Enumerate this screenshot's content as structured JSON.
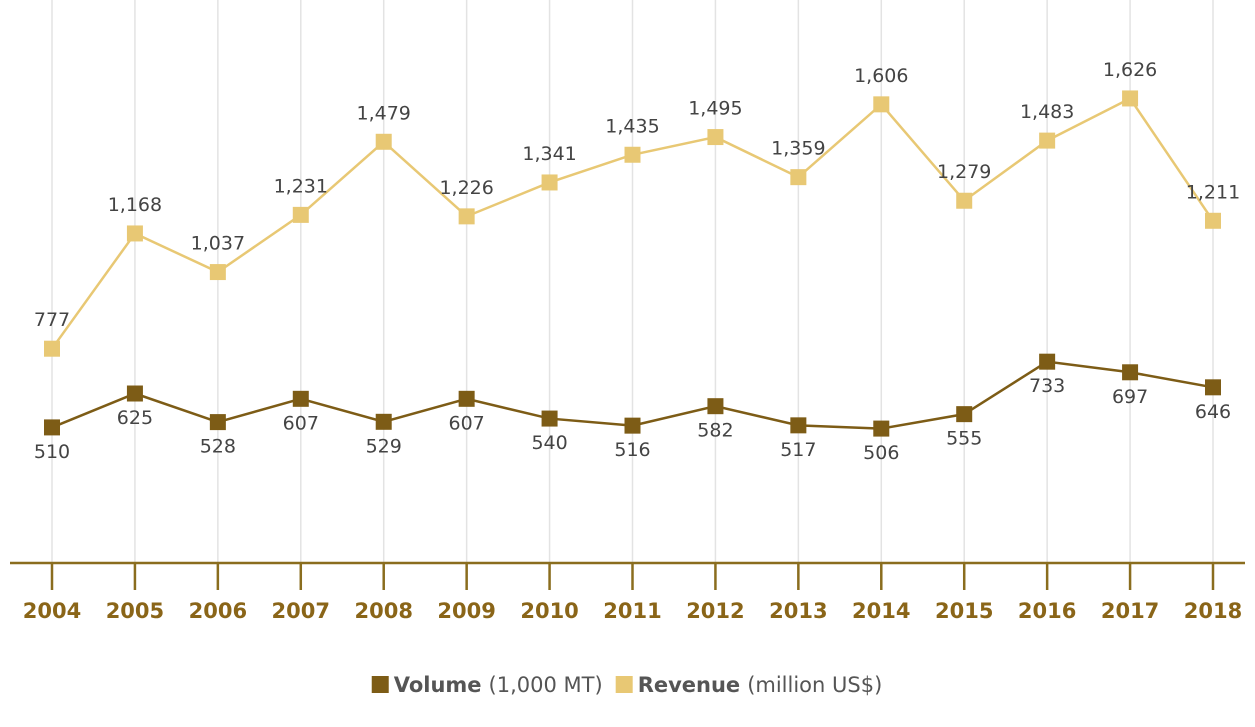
{
  "chart_data": {
    "type": "line",
    "categories": [
      "2004",
      "2005",
      "2006",
      "2007",
      "2008",
      "2009",
      "2010",
      "2011",
      "2012",
      "2013",
      "2014",
      "2015",
      "2016",
      "2017",
      "2018"
    ],
    "series": [
      {
        "name": "Volume",
        "unit": "(1,000 MT)",
        "color": "#7d5c16",
        "values": [
          510,
          625,
          528,
          607,
          529,
          607,
          540,
          516,
          582,
          517,
          506,
          555,
          733,
          697,
          646
        ],
        "label_position": "below"
      },
      {
        "name": "Revenue",
        "unit": "(million US$)",
        "color": "#e8c874",
        "values": [
          777,
          1168,
          1037,
          1231,
          1479,
          1226,
          1341,
          1435,
          1495,
          1359,
          1606,
          1279,
          1483,
          1626,
          1211
        ],
        "value_labels": [
          "777",
          "1,168",
          "1,037",
          "1,231",
          "1,479",
          "1,226",
          "1,341",
          "1,435",
          "1,495",
          "1,359",
          "1,606",
          "1,279",
          "1,483",
          "1,626",
          "1,211"
        ],
        "label_position": "above"
      }
    ],
    "ylim": [
      50,
      1960
    ],
    "grid": true,
    "legend": "bottom"
  }
}
